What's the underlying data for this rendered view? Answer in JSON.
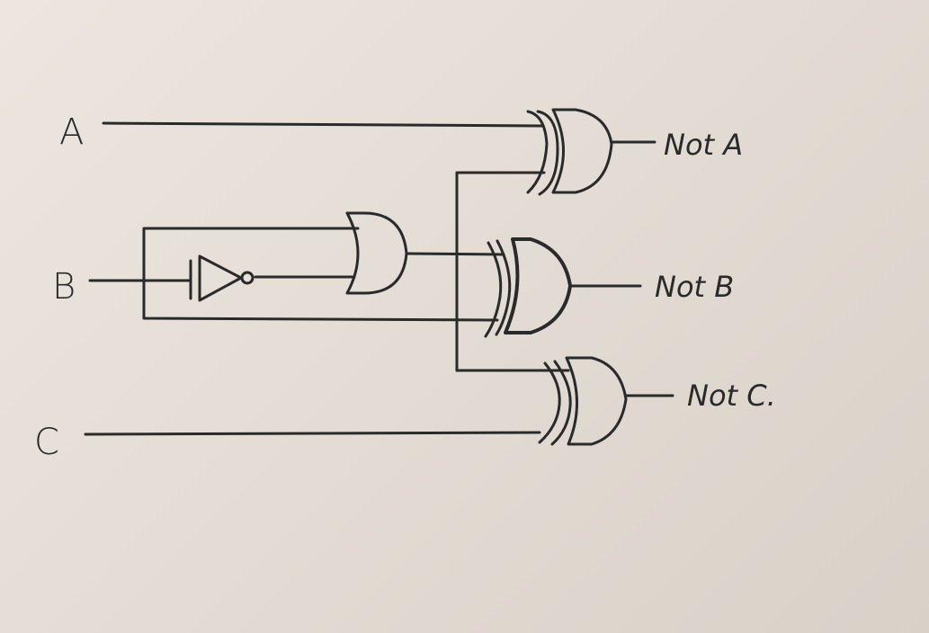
{
  "inputs": {
    "a": "A",
    "b": "B",
    "c": "C"
  },
  "outputs": {
    "a": "Not A",
    "b": "Not B",
    "c": "Not C."
  },
  "gates": {
    "top": "xor",
    "middle": "xor",
    "bottom": "xor",
    "inverter": "not",
    "left": "or"
  },
  "colors": {
    "paper": "#e6e0d8",
    "ink": "#2a2a2a"
  }
}
